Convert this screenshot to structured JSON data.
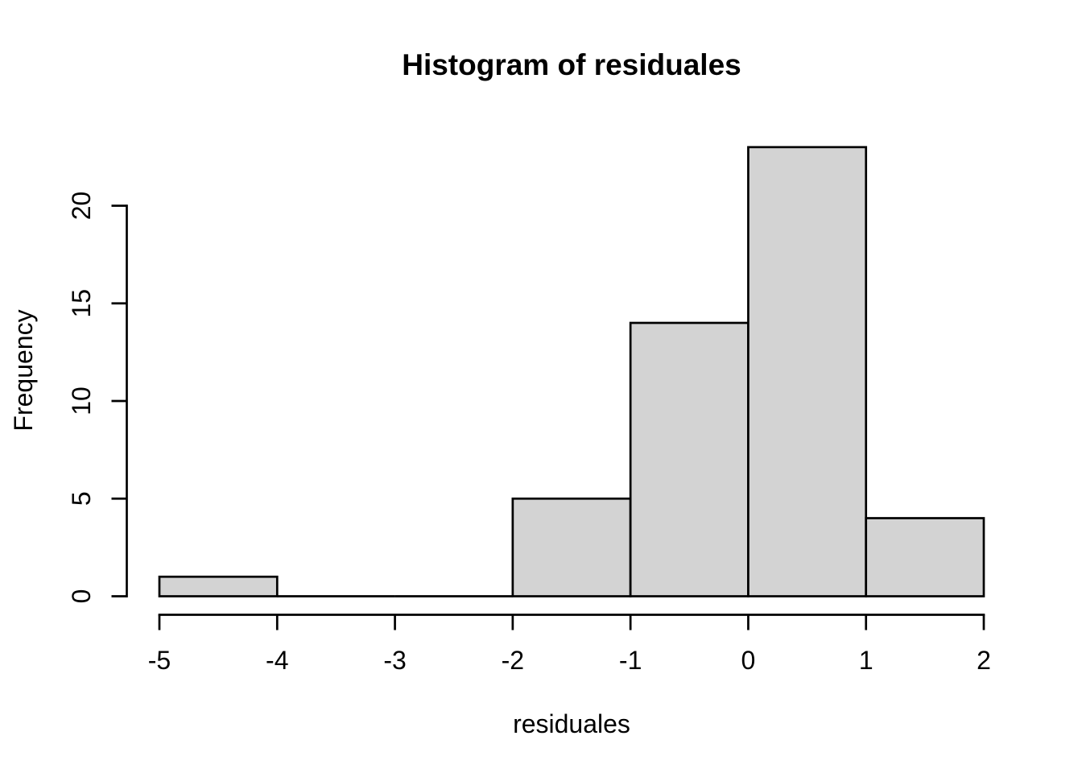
{
  "chart_data": {
    "type": "bar",
    "subtype": "histogram",
    "title": "Histogram of residuales",
    "xlabel": "residuales",
    "ylabel": "Frequency",
    "bin_edges": [
      -5,
      -4,
      -3,
      -2,
      -1,
      0,
      1,
      2
    ],
    "counts": [
      1,
      0,
      0,
      5,
      14,
      23,
      4
    ],
    "x_ticks": [
      -5,
      -4,
      -3,
      -2,
      -1,
      0,
      1,
      2
    ],
    "x_tick_labels": [
      "-5",
      "-4",
      "-3",
      "-2",
      "-1",
      "0",
      "1",
      "2"
    ],
    "y_ticks": [
      0,
      5,
      10,
      15,
      20
    ],
    "y_tick_labels": [
      "0",
      "5",
      "10",
      "15",
      "20"
    ],
    "xlim": [
      -5,
      2
    ],
    "ylim": [
      0,
      23
    ],
    "grid": false,
    "legend": null,
    "colors": {
      "bar_fill": "#d3d3d3",
      "bar_stroke": "#000000",
      "axis": "#000000",
      "text": "#000000",
      "background": "#ffffff"
    }
  }
}
